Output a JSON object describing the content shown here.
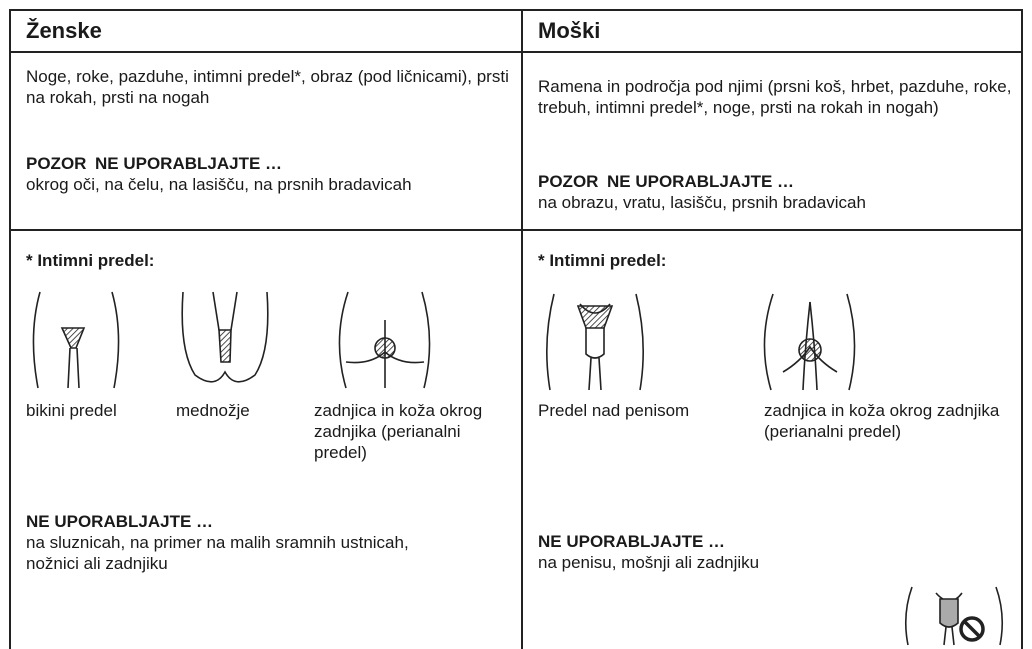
{
  "table": {
    "columns": [
      {
        "header": "Ženske",
        "areas": "Noge, roke, pazduhe, intimni predel*, obraz (pod ličnicami), prsti na rokah, prsti na nogah",
        "caution": {
          "title": "POZOR",
          "subtitle": "NE UPORABLJAJTE …",
          "text": "okrog oči, na čelu, na lasišču, na prsnih bradavicah"
        },
        "intimate": {
          "title": "* Intimni predel:",
          "figures": [
            {
              "caption": "bikini predel"
            },
            {
              "caption": "mednožje"
            },
            {
              "caption": "zadnjica in koža okrog zadnjika (perianalni predel)"
            }
          ],
          "warning": {
            "title": "NE UPORABLJAJTE …",
            "text": "na sluznicah, na primer na malih sramnih ustnicah, nožnici ali zadnjiku"
          }
        }
      },
      {
        "header": "Moški",
        "areas": "Ramena in področja pod njimi (prsni koš, hrbet, pazduhe, roke, trebuh, intimni predel*, noge, prsti na rokah in nogah)",
        "caution": {
          "title": "POZOR",
          "subtitle": "NE UPORABLJAJTE …",
          "text": "na obrazu, vratu, lasišču, prsnih bradavicah"
        },
        "intimate": {
          "title": "* Intimni predel:",
          "figures": [
            {
              "caption": "Predel nad penisom"
            },
            {
              "caption": "zadnjica in koža okrog zadnjika (perianalni predel)"
            }
          ],
          "warning": {
            "title": "NE UPORABLJAJTE …",
            "text": "na penisu, mošnji ali zadnjiku"
          }
        }
      }
    ]
  }
}
